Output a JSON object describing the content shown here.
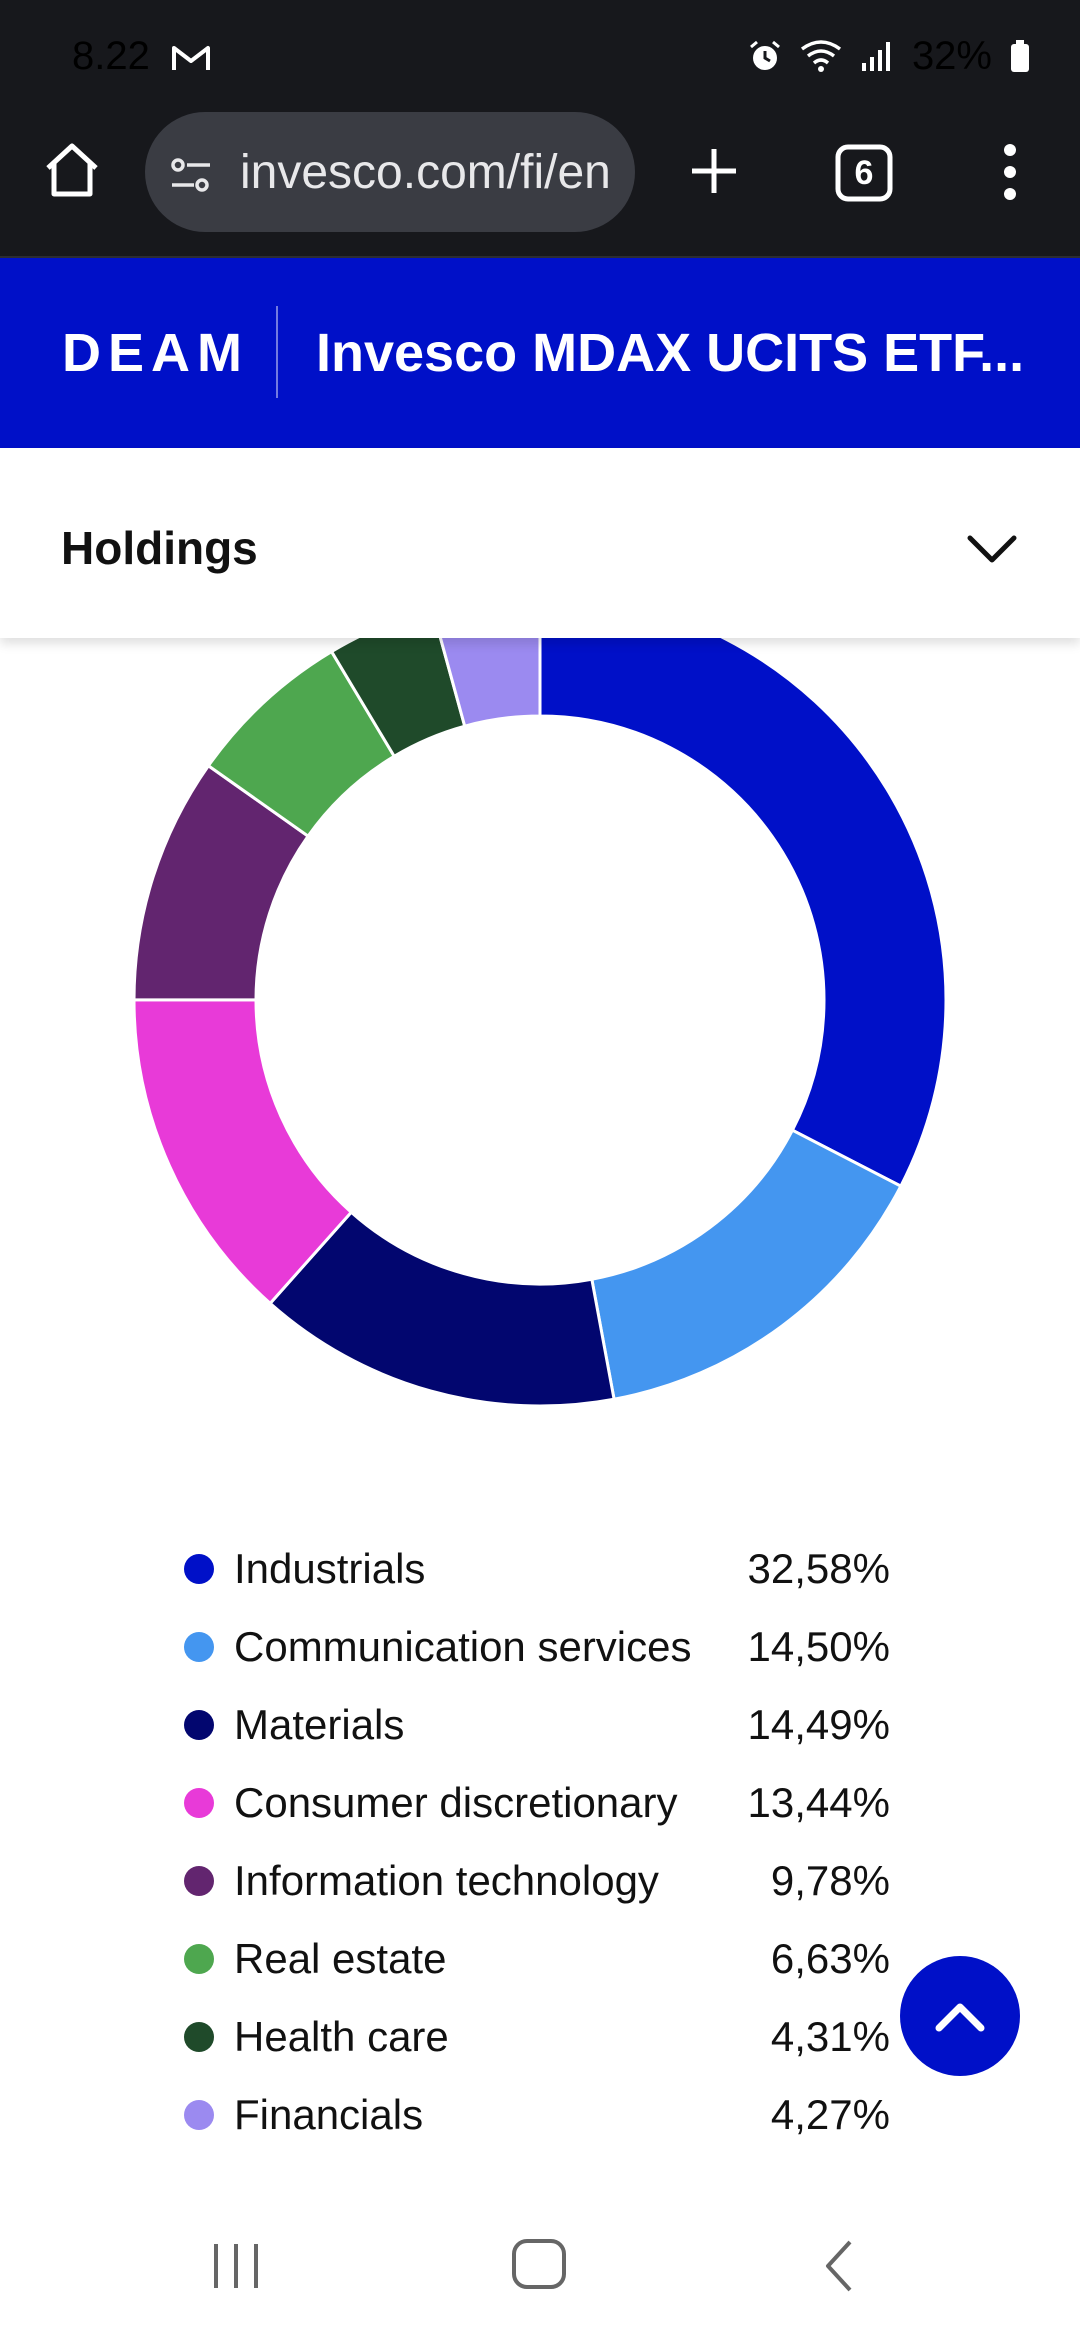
{
  "status_bar": {
    "time": "8.22",
    "battery": "32%",
    "icons": [
      "gmail-icon",
      "alarm-icon",
      "wifi-icon",
      "signal-icon",
      "battery-icon"
    ]
  },
  "browser": {
    "url": "invesco.com/fi/en",
    "tab_count": "6",
    "icons": [
      "home-icon",
      "site-settings-icon",
      "new-tab-icon",
      "tabs-icon",
      "more-icon"
    ]
  },
  "header": {
    "ticker": "DEAM",
    "fund_name": "Invesco MDAX UCITS ETF..."
  },
  "section": {
    "title": "Holdings"
  },
  "chart_data": {
    "type": "pie",
    "style": "donut",
    "categories": [
      "Industrials",
      "Communication services",
      "Materials",
      "Consumer discretionary",
      "Information technology",
      "Real estate",
      "Health care",
      "Financials"
    ],
    "values": [
      32.58,
      14.5,
      14.49,
      13.44,
      9.78,
      6.63,
      4.31,
      4.27
    ],
    "value_labels": [
      "32,58%",
      "14,50%",
      "14,49%",
      "13,44%",
      "9,78%",
      "6,63%",
      "4,31%",
      "4,27%"
    ],
    "colors": [
      "#0010c8",
      "#4496f0",
      "#02066f",
      "#e83ad8",
      "#62256f",
      "#4ea74f",
      "#1f4a2a",
      "#9b8af0"
    ],
    "legend_placement": "bottom"
  },
  "colors": {
    "brand": "#0010c8",
    "browser_bg": "#17181c"
  }
}
